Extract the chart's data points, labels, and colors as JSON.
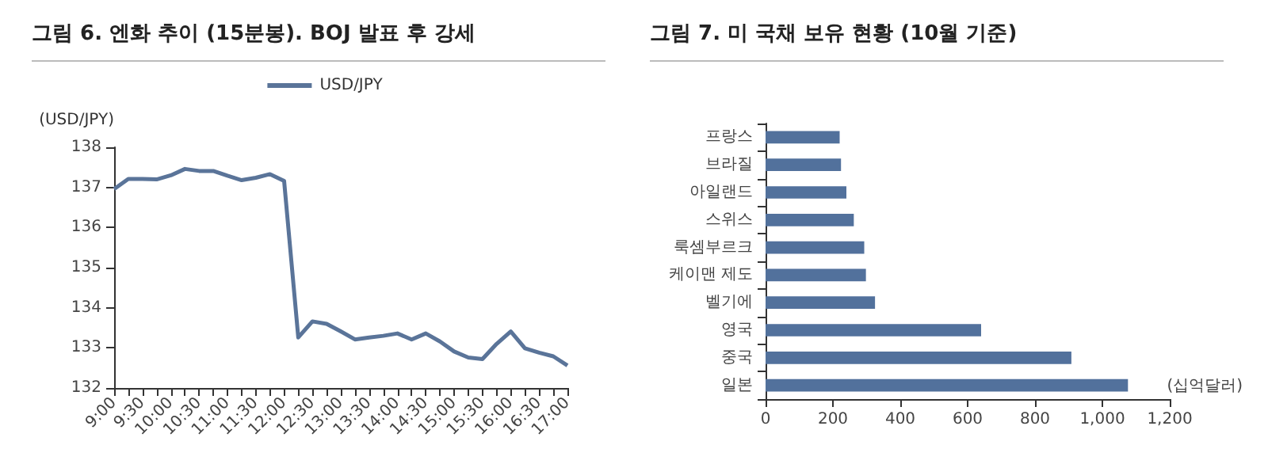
{
  "chart_data": [
    {
      "type": "line",
      "title": "그림 6. 엔화 추이 (15분봉). BOJ 발표 후 강세",
      "ylabel": "(USD/JPY)",
      "categories": [
        "9:00",
        null,
        "9:30",
        null,
        "10:00",
        null,
        "10:30",
        null,
        "11:00",
        null,
        "11:30",
        null,
        "12:00",
        null,
        "12:30",
        null,
        "13:00",
        null,
        "13:30",
        null,
        "14:00",
        null,
        "14:30",
        null,
        "15:00",
        null,
        "15:30",
        null,
        "16:00",
        null,
        "16:30",
        null,
        "17:00"
      ],
      "series": [
        {
          "name": "USD/JPY",
          "color": "#5a7499",
          "values": [
            136.96,
            137.21,
            137.21,
            137.2,
            137.3,
            137.46,
            137.41,
            137.41,
            137.29,
            137.18,
            137.24,
            137.33,
            137.16,
            133.26,
            133.66,
            133.6,
            133.41,
            133.21,
            133.26,
            133.3,
            133.36,
            133.21,
            133.36,
            133.16,
            132.91,
            132.76,
            132.72,
            133.1,
            133.41,
            132.99,
            132.88,
            132.79,
            132.56
          ]
        }
      ],
      "ylim": [
        132,
        138
      ],
      "yticks": [
        132,
        133,
        134,
        135,
        136,
        137,
        138
      ],
      "grid": false,
      "legend": "top",
      "marker": "none",
      "line_style": "solid"
    },
    {
      "type": "bar",
      "orientation": "horizontal",
      "title": "그림 7. 미 국채 보유 현황 (10월 기준)",
      "categories": [
        "프랑스",
        "브라질",
        "아일랜드",
        "스위스",
        "룩셈부르크",
        "케이맨 제도",
        "벨기에",
        "영국",
        "중국",
        "일본"
      ],
      "values": [
        220,
        224,
        240,
        262,
        293,
        298,
        325,
        640,
        908,
        1076
      ],
      "color": "#52719c",
      "xlim": [
        0,
        1200
      ],
      "xticks": [
        0,
        {
          "value": 200,
          "label": "200"
        },
        {
          "value": 400,
          "label": "400"
        },
        {
          "value": 600,
          "label": "600"
        },
        {
          "value": 800,
          "label": "800"
        },
        {
          "value": 1000,
          "label": "1,000"
        },
        {
          "value": 1200,
          "label": "1,200"
        }
      ],
      "grid": false,
      "annotations": [
        "(십억달러)"
      ]
    }
  ]
}
